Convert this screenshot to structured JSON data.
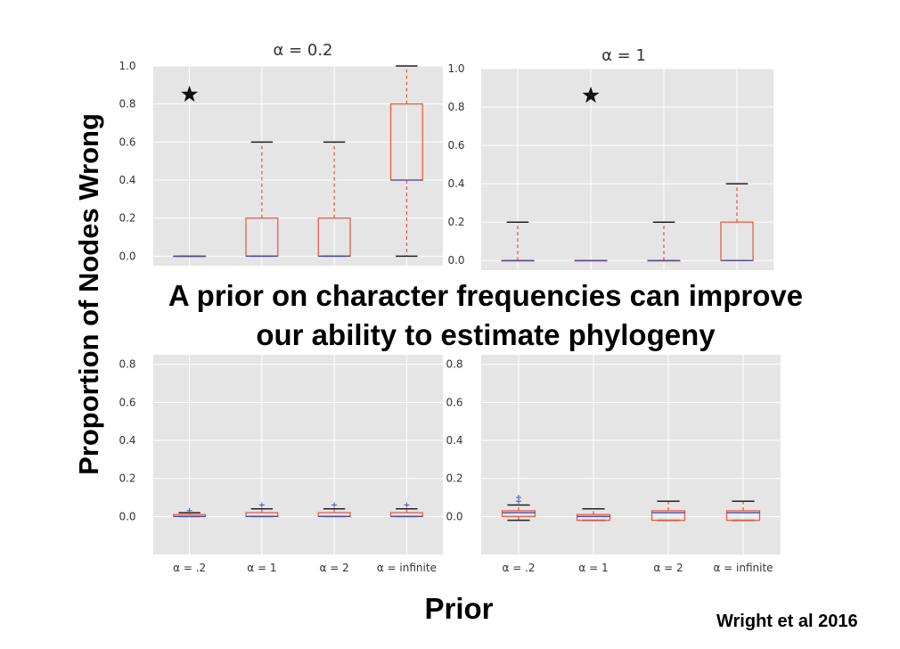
{
  "headline": {
    "line1": "A prior on character frequencies can improve",
    "line2": "our ability to estimate phylogeny"
  },
  "ylabel": "Proportion of Nodes Wrong",
  "xlabel": "Prior",
  "citation": "Wright et al 2016",
  "colors": {
    "panel_bg": "#e5e5e5",
    "grid": "#ffffff",
    "box": "#e8543b",
    "whisker": "#e8543b",
    "cap": "#222222",
    "median": "#4b4b9c",
    "outlier": "#3b5bbf",
    "tick_text": "#333333"
  },
  "chart_data": [
    {
      "type": "box",
      "panel": "top-left",
      "title": "α = 0.2",
      "ylim": [
        -0.05,
        1.0
      ],
      "yticks": [
        "0.0",
        "0.2",
        "0.4",
        "0.6",
        "0.8",
        "1.0"
      ],
      "star_marker": {
        "x": 1,
        "y": 0.85
      },
      "boxes": [
        {
          "min": 0.0,
          "q1": 0.0,
          "median": 0.0,
          "q3": 0.0,
          "max": 0.0
        },
        {
          "min": 0.0,
          "q1": 0.0,
          "median": 0.0,
          "q3": 0.2,
          "max": 0.6
        },
        {
          "min": 0.0,
          "q1": 0.0,
          "median": 0.0,
          "q3": 0.2,
          "max": 0.6
        },
        {
          "min": 0.0,
          "q1": 0.4,
          "median": 0.4,
          "q3": 0.8,
          "max": 1.0
        }
      ]
    },
    {
      "type": "box",
      "panel": "top-right",
      "title": "α = 1",
      "ylim": [
        -0.05,
        1.0
      ],
      "yticks": [
        "0.0",
        "0.2",
        "0.4",
        "0.6",
        "0.8",
        "1.0"
      ],
      "star_marker": {
        "x": 2,
        "y": 0.86
      },
      "boxes": [
        {
          "min": 0.0,
          "q1": 0.0,
          "median": 0.0,
          "q3": 0.0,
          "max": 0.2
        },
        {
          "min": 0.0,
          "q1": 0.0,
          "median": 0.0,
          "q3": 0.0,
          "max": 0.0
        },
        {
          "min": 0.0,
          "q1": 0.0,
          "median": 0.0,
          "q3": 0.0,
          "max": 0.2
        },
        {
          "min": 0.0,
          "q1": 0.0,
          "median": 0.0,
          "q3": 0.2,
          "max": 0.4
        }
      ]
    },
    {
      "type": "box",
      "panel": "bottom-left",
      "title": "",
      "ylim": [
        -0.2,
        0.85
      ],
      "yticks": [
        "0.0",
        "0.2",
        "0.4",
        "0.6",
        "0.8"
      ],
      "categories": [
        "α = .2",
        "α = 1",
        "α = 2",
        "α = infinite"
      ],
      "boxes": [
        {
          "min": 0.0,
          "q1": 0.0,
          "median": 0.0,
          "q3": 0.01,
          "max": 0.02,
          "outliers": [
            0.03
          ]
        },
        {
          "min": 0.0,
          "q1": 0.0,
          "median": 0.0,
          "q3": 0.02,
          "max": 0.04,
          "outliers": [
            0.06
          ]
        },
        {
          "min": 0.0,
          "q1": 0.0,
          "median": 0.0,
          "q3": 0.02,
          "max": 0.04,
          "outliers": [
            0.06
          ]
        },
        {
          "min": 0.0,
          "q1": 0.0,
          "median": 0.0,
          "q3": 0.02,
          "max": 0.04,
          "outliers": [
            0.06
          ]
        }
      ]
    },
    {
      "type": "box",
      "panel": "bottom-right",
      "title": "",
      "ylim": [
        -0.2,
        0.85
      ],
      "yticks": [
        "0.0",
        "0.2",
        "0.4",
        "0.6",
        "0.8"
      ],
      "categories": [
        "α = .2",
        "α = 1",
        "α = 2",
        "α = infinite"
      ],
      "boxes": [
        {
          "min": -0.02,
          "q1": 0.0,
          "median": 0.02,
          "q3": 0.03,
          "max": 0.06,
          "outliers": [
            0.08,
            0.1
          ]
        },
        {
          "min": -0.02,
          "q1": -0.02,
          "median": 0.0,
          "q3": 0.01,
          "max": 0.04
        },
        {
          "min": -0.02,
          "q1": -0.02,
          "median": 0.02,
          "q3": 0.03,
          "max": 0.08
        },
        {
          "min": -0.02,
          "q1": -0.02,
          "median": 0.02,
          "q3": 0.03,
          "max": 0.08
        }
      ]
    }
  ]
}
